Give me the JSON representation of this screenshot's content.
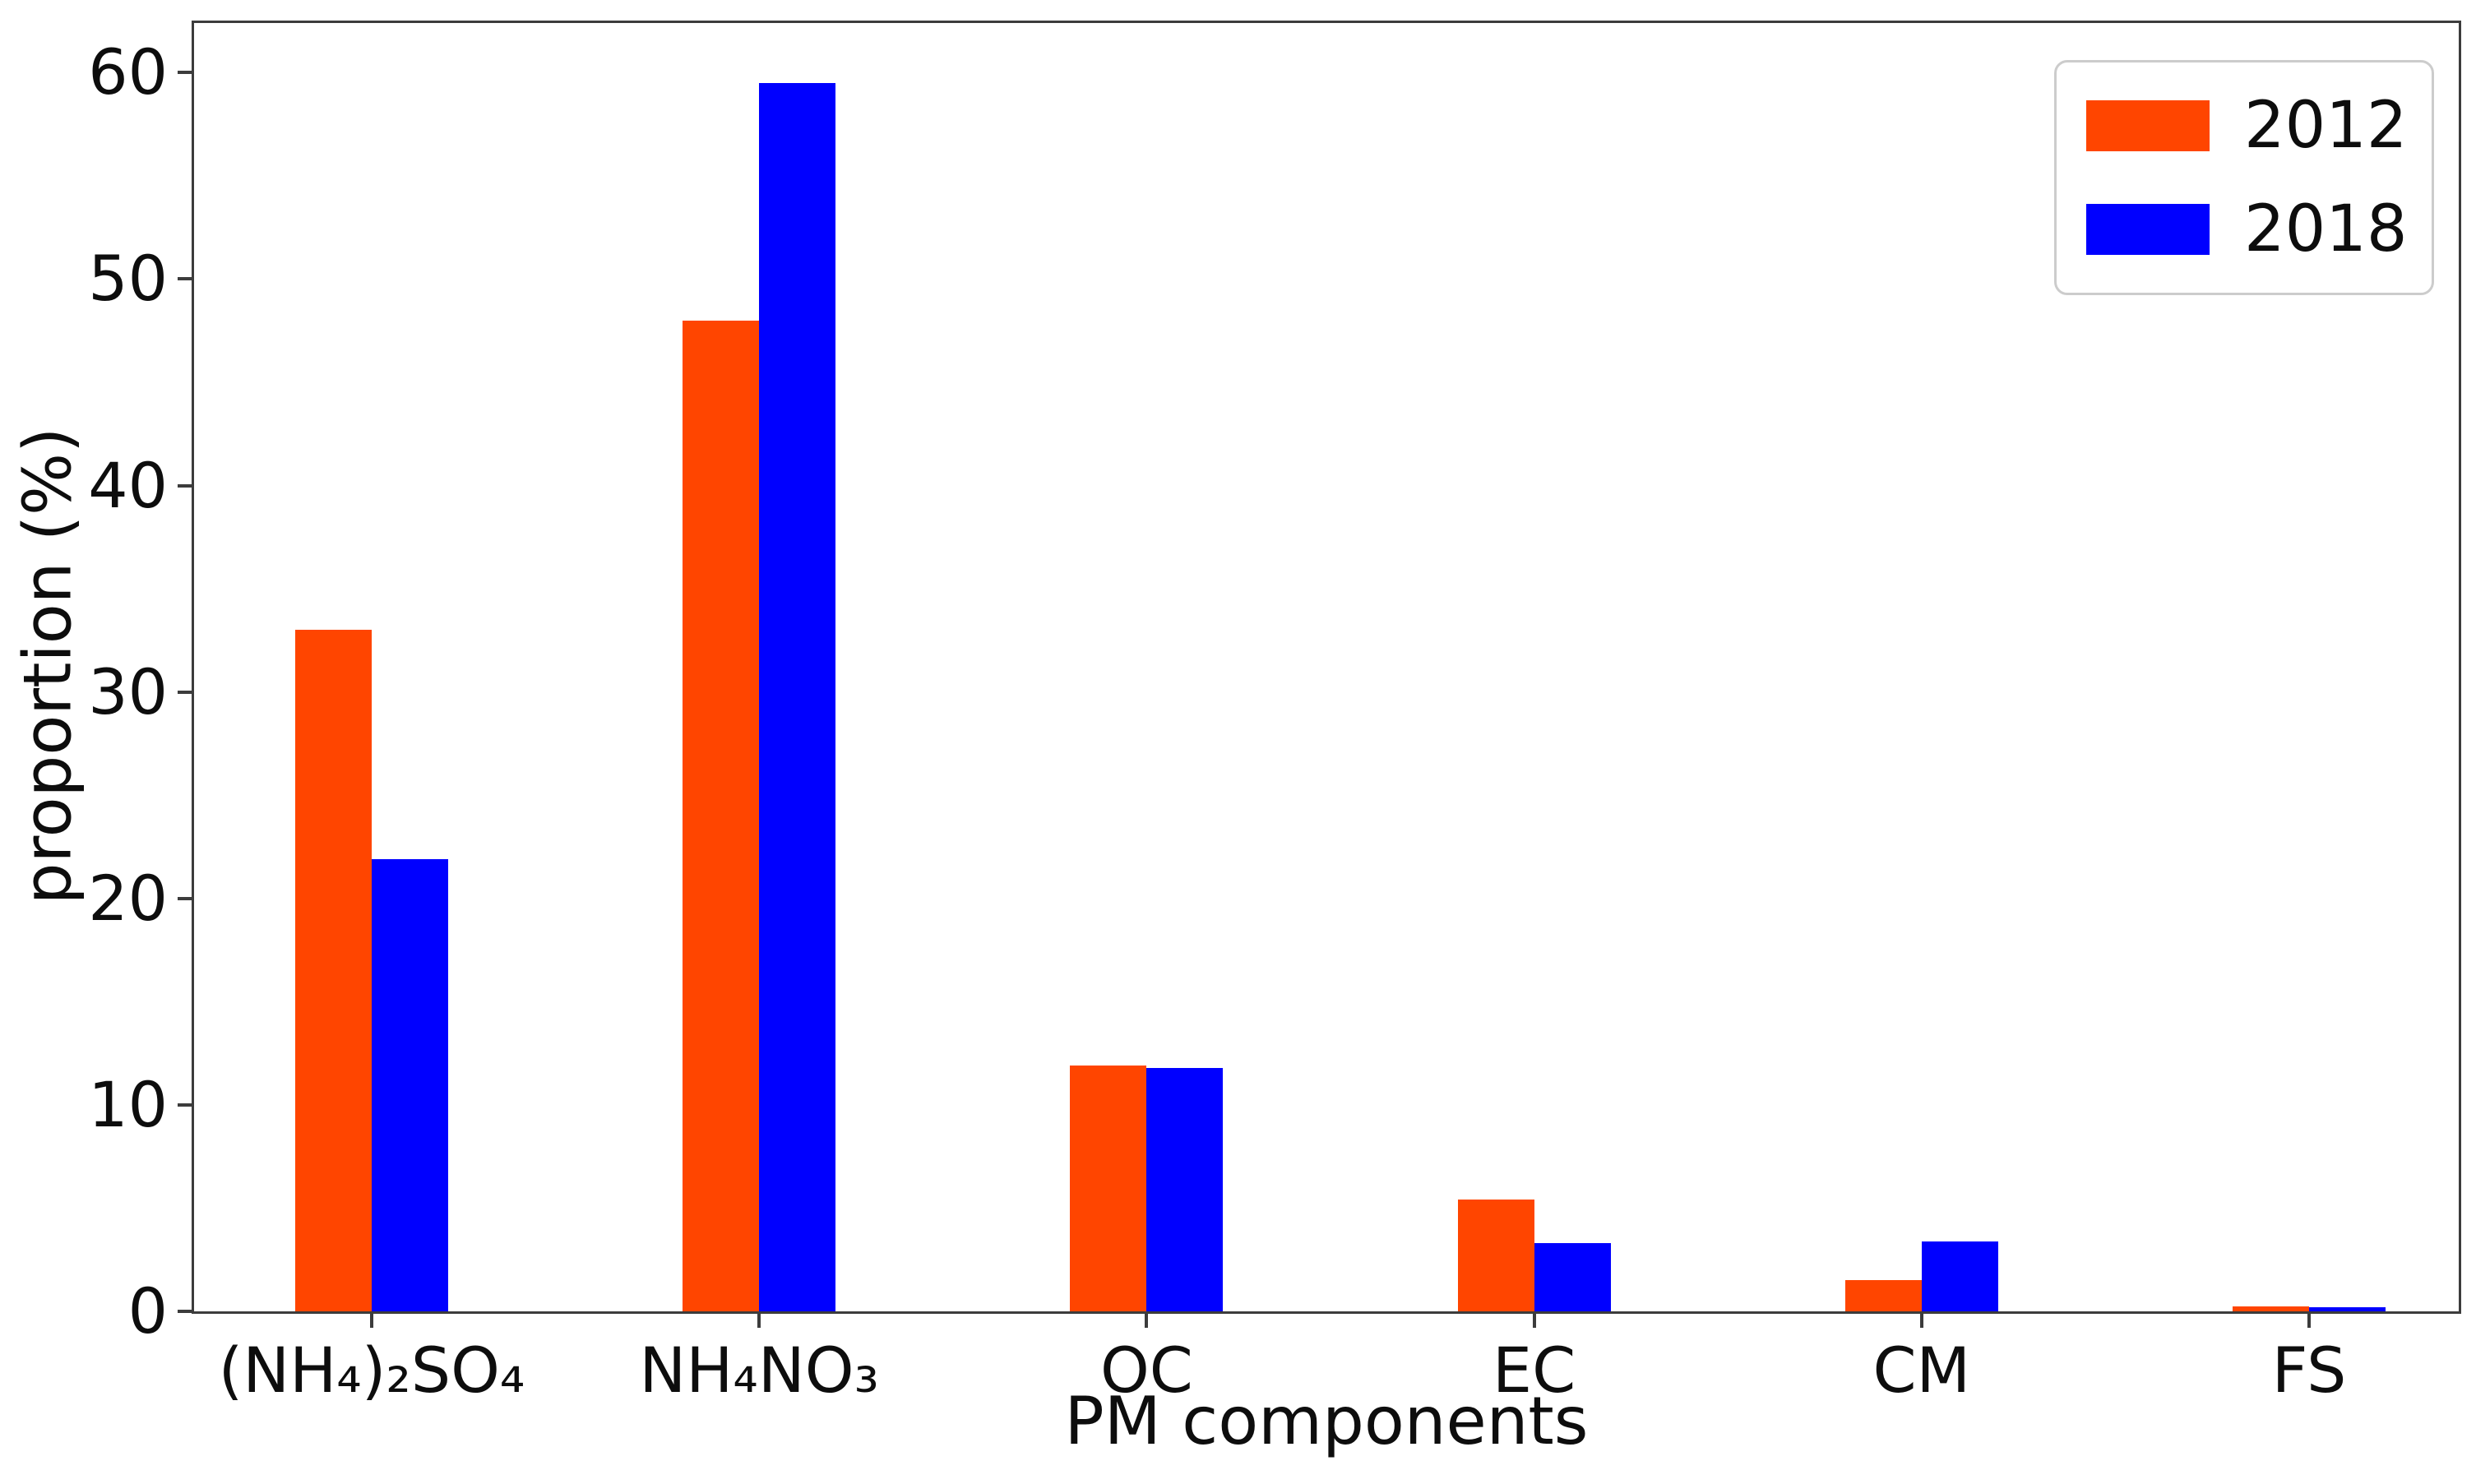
{
  "chart_data": {
    "type": "bar",
    "title": "",
    "xlabel": "PM components",
    "ylabel": "proportion (%)",
    "categories": [
      "(NH₄)₂SO₄",
      "NH₄NO₃",
      "OC",
      "EC",
      "CM",
      "FS"
    ],
    "series": [
      {
        "name": "2012",
        "color": "#FF4500",
        "values": [
          33.0,
          48.0,
          11.9,
          5.4,
          1.5,
          0.25
        ]
      },
      {
        "name": "2018",
        "color": "#0000FF",
        "values": [
          21.9,
          59.5,
          11.8,
          3.3,
          3.4,
          0.2
        ]
      }
    ],
    "yticks": [
      0,
      10,
      20,
      30,
      40,
      50,
      60
    ],
    "ylim": [
      0,
      62.4
    ],
    "grid": false,
    "legend_position": "upper right",
    "spine_color": "#3c3c3c"
  }
}
